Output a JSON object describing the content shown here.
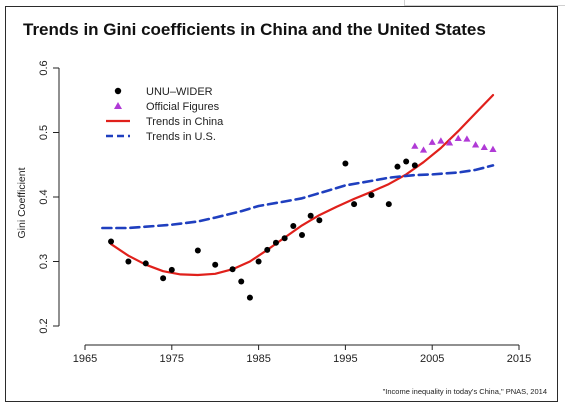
{
  "chart_data": {
    "type": "scatter",
    "title": "Trends in Gini coefficients in China and the United States",
    "ylabel": "Gini Coefficient",
    "xlabel": "",
    "xlim": [
      1965,
      2015
    ],
    "ylim": [
      0.2,
      0.6
    ],
    "xticks": [
      "1965",
      "1975",
      "1985",
      "1995",
      "2005",
      "2015"
    ],
    "yticks": [
      "0.2",
      "0.3",
      "0.4",
      "0.5",
      "0.6"
    ],
    "grid": false,
    "legend_position": "top-left",
    "caption": "\"Income inequality in today's China,\" PNAS, 2014",
    "series": [
      {
        "name": "UNU–WIDER",
        "kind": "points",
        "marker": "circle",
        "color": "#000000",
        "x": [
          1968,
          1970,
          1972,
          1974,
          1975,
          1978,
          1980,
          1982,
          1983,
          1984,
          1985,
          1986,
          1987,
          1988,
          1989,
          1990,
          1991,
          1992,
          1995,
          1996,
          1998,
          2000,
          2001,
          2002,
          2003
        ],
        "y": [
          0.331,
          0.3,
          0.297,
          0.274,
          0.287,
          0.317,
          0.295,
          0.288,
          0.269,
          0.244,
          0.3,
          0.318,
          0.329,
          0.336,
          0.355,
          0.341,
          0.371,
          0.364,
          0.452,
          0.389,
          0.403,
          0.389,
          0.447,
          0.455,
          0.449
        ]
      },
      {
        "name": "Official Figures",
        "kind": "points",
        "marker": "triangle",
        "color": "#b03ad6",
        "x": [
          2003,
          2004,
          2005,
          2006,
          2007,
          2008,
          2009,
          2010,
          2011,
          2012
        ],
        "y": [
          0.479,
          0.473,
          0.485,
          0.487,
          0.484,
          0.491,
          0.49,
          0.481,
          0.477,
          0.474
        ]
      },
      {
        "name": "Trends in China",
        "kind": "line",
        "style": "solid",
        "color": "#e0201b",
        "x": [
          1968,
          1970,
          1972,
          1974,
          1976,
          1978,
          1980,
          1982,
          1984,
          1986,
          1988,
          1990,
          1992,
          1994,
          1996,
          1998,
          2000,
          2002,
          2004,
          2006,
          2008,
          2010,
          2012
        ],
        "y": [
          0.327,
          0.309,
          0.295,
          0.285,
          0.28,
          0.279,
          0.281,
          0.288,
          0.3,
          0.318,
          0.337,
          0.356,
          0.372,
          0.385,
          0.397,
          0.408,
          0.42,
          0.435,
          0.454,
          0.476,
          0.502,
          0.53,
          0.558
        ]
      },
      {
        "name": "Trends in U.S.",
        "kind": "line",
        "style": "dashed",
        "color": "#1f3fbf",
        "x": [
          1967,
          1970,
          1972,
          1975,
          1978,
          1980,
          1983,
          1985,
          1988,
          1990,
          1993,
          1995,
          1998,
          2000,
          2003,
          2005,
          2008,
          2010,
          2012
        ],
        "y": [
          0.352,
          0.352,
          0.354,
          0.357,
          0.362,
          0.368,
          0.378,
          0.386,
          0.393,
          0.398,
          0.41,
          0.418,
          0.425,
          0.43,
          0.434,
          0.435,
          0.438,
          0.442,
          0.449
        ]
      }
    ]
  }
}
